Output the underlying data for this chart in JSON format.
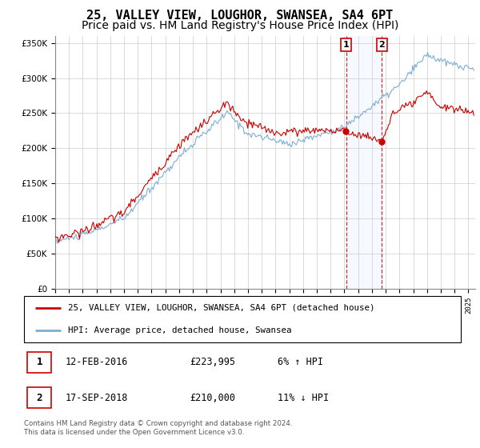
{
  "title": "25, VALLEY VIEW, LOUGHOR, SWANSEA, SA4 6PT",
  "subtitle": "Price paid vs. HM Land Registry's House Price Index (HPI)",
  "ylabel_ticks": [
    "£0",
    "£50K",
    "£100K",
    "£150K",
    "£200K",
    "£250K",
    "£300K",
    "£350K"
  ],
  "ytick_values": [
    0,
    50000,
    100000,
    150000,
    200000,
    250000,
    300000,
    350000
  ],
  "ylim": [
    0,
    360000
  ],
  "xlim_start": 1995.0,
  "xlim_end": 2025.5,
  "red_line_color": "#cc0000",
  "blue_line_color": "#7bafd4",
  "marker1_date": 2016.12,
  "marker2_date": 2018.72,
  "legend_line1": "25, VALLEY VIEW, LOUGHOR, SWANSEA, SA4 6PT (detached house)",
  "legend_line2": "HPI: Average price, detached house, Swansea",
  "transaction1_num": "1",
  "transaction1_date": "12-FEB-2016",
  "transaction1_price": "£223,995",
  "transaction1_hpi": "6% ↑ HPI",
  "transaction2_num": "2",
  "transaction2_date": "17-SEP-2018",
  "transaction2_price": "£210,000",
  "transaction2_hpi": "11% ↓ HPI",
  "footer": "Contains HM Land Registry data © Crown copyright and database right 2024.\nThis data is licensed under the Open Government Licence v3.0.",
  "background_color": "#ffffff",
  "grid_color": "#cccccc",
  "title_fontsize": 11,
  "subtitle_fontsize": 10
}
